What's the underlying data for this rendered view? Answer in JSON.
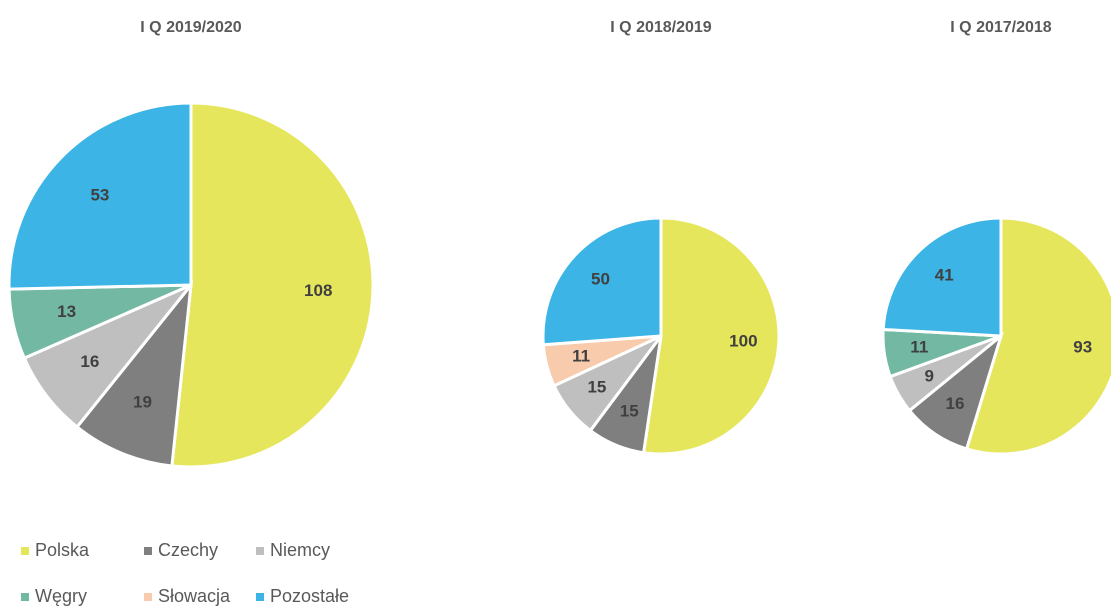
{
  "categories": [
    "Polska",
    "Czechy",
    "Niemcy",
    "Węgry",
    "Słowacja",
    "Pozostałe"
  ],
  "colors": [
    "#e6e65c",
    "#7f7f7f",
    "#bfbfbf",
    "#72b8a2",
    "#f8cbad",
    "#3cb4e5"
  ],
  "chart_data": [
    {
      "type": "pie",
      "title": "I Q 2019/2020",
      "values": [
        108,
        19,
        16,
        13,
        null,
        53
      ]
    },
    {
      "type": "pie",
      "title": "I Q 2018/2019",
      "values": [
        100,
        15,
        15,
        null,
        11,
        50
      ]
    },
    {
      "type": "pie",
      "title": "I Q 2017/2018",
      "values": [
        93,
        16,
        9,
        11,
        null,
        41
      ]
    }
  ]
}
